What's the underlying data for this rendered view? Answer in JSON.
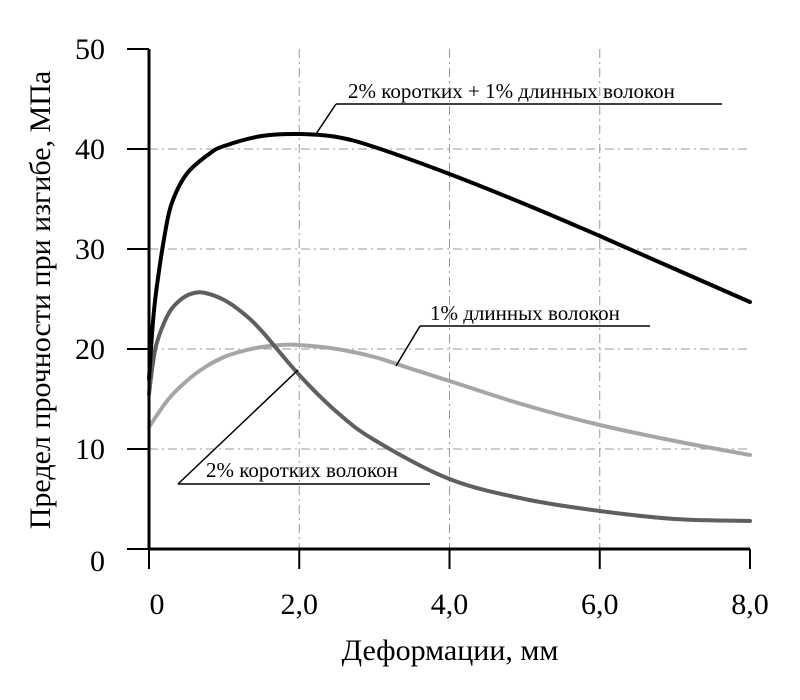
{
  "chart_data": {
    "type": "line",
    "xlabel": "Деформации, мм",
    "ylabel": "Предел прочности при изгибе, МПа",
    "xlim": [
      0,
      8
    ],
    "ylim": [
      0,
      50
    ],
    "xticks": [
      0,
      2,
      4,
      6,
      8
    ],
    "xtick_labels": [
      "0",
      "2,0",
      "4,0",
      "6,0",
      "8,0"
    ],
    "yticks": [
      0,
      10,
      20,
      30,
      40,
      50
    ],
    "ytick_labels": [
      "0",
      "10",
      "20",
      "30",
      "40",
      "50"
    ],
    "grid": true,
    "series": [
      {
        "name": "2% коротких + 1% длинных волокон",
        "color": "#000000",
        "x": [
          0,
          0.05,
          0.1,
          0.2,
          0.3,
          0.5,
          0.8,
          1.0,
          1.5,
          2.0,
          2.5,
          3.0,
          4.0,
          5.0,
          6.0,
          7.0,
          8.0
        ],
        "y": [
          17,
          22.5,
          26,
          31,
          34.5,
          37.5,
          39.5,
          40.3,
          41.3,
          41.5,
          41.2,
          40.2,
          37.5,
          34.5,
          31.3,
          28,
          24.7
        ]
      },
      {
        "name": "1% длинных волокон",
        "color": "#a6a6a6",
        "x": [
          0,
          0.25,
          0.5,
          0.75,
          1.0,
          1.25,
          1.5,
          1.75,
          2.0,
          2.5,
          3.0,
          3.5,
          4.0,
          5.0,
          6.0,
          7.0,
          8.0
        ],
        "y": [
          12.2,
          14.9,
          16.8,
          18.2,
          19.2,
          19.8,
          20.2,
          20.4,
          20.4,
          20.0,
          19.2,
          18.0,
          16.8,
          14.4,
          12.4,
          10.8,
          9.4
        ]
      },
      {
        "name": "2% коротких волокон",
        "color": "#5f5f5f",
        "x": [
          0,
          0.05,
          0.1,
          0.2,
          0.3,
          0.45,
          0.6,
          0.75,
          1.0,
          1.25,
          1.5,
          2.0,
          2.5,
          3.0,
          4.0,
          5.0,
          6.0,
          7.0,
          8.0
        ],
        "y": [
          15.5,
          18.5,
          20.5,
          22.6,
          24.0,
          25.1,
          25.6,
          25.6,
          24.9,
          23.6,
          21.8,
          17.4,
          13.7,
          10.9,
          7.0,
          5.0,
          3.8,
          3.0,
          2.8
        ]
      }
    ],
    "annotations": [
      {
        "text": "2% коротких + 1% длинных волокон",
        "series": 0
      },
      {
        "text": "1% длинных волокон",
        "series": 1
      },
      {
        "text": "2% коротких волокон",
        "series": 2
      }
    ]
  }
}
